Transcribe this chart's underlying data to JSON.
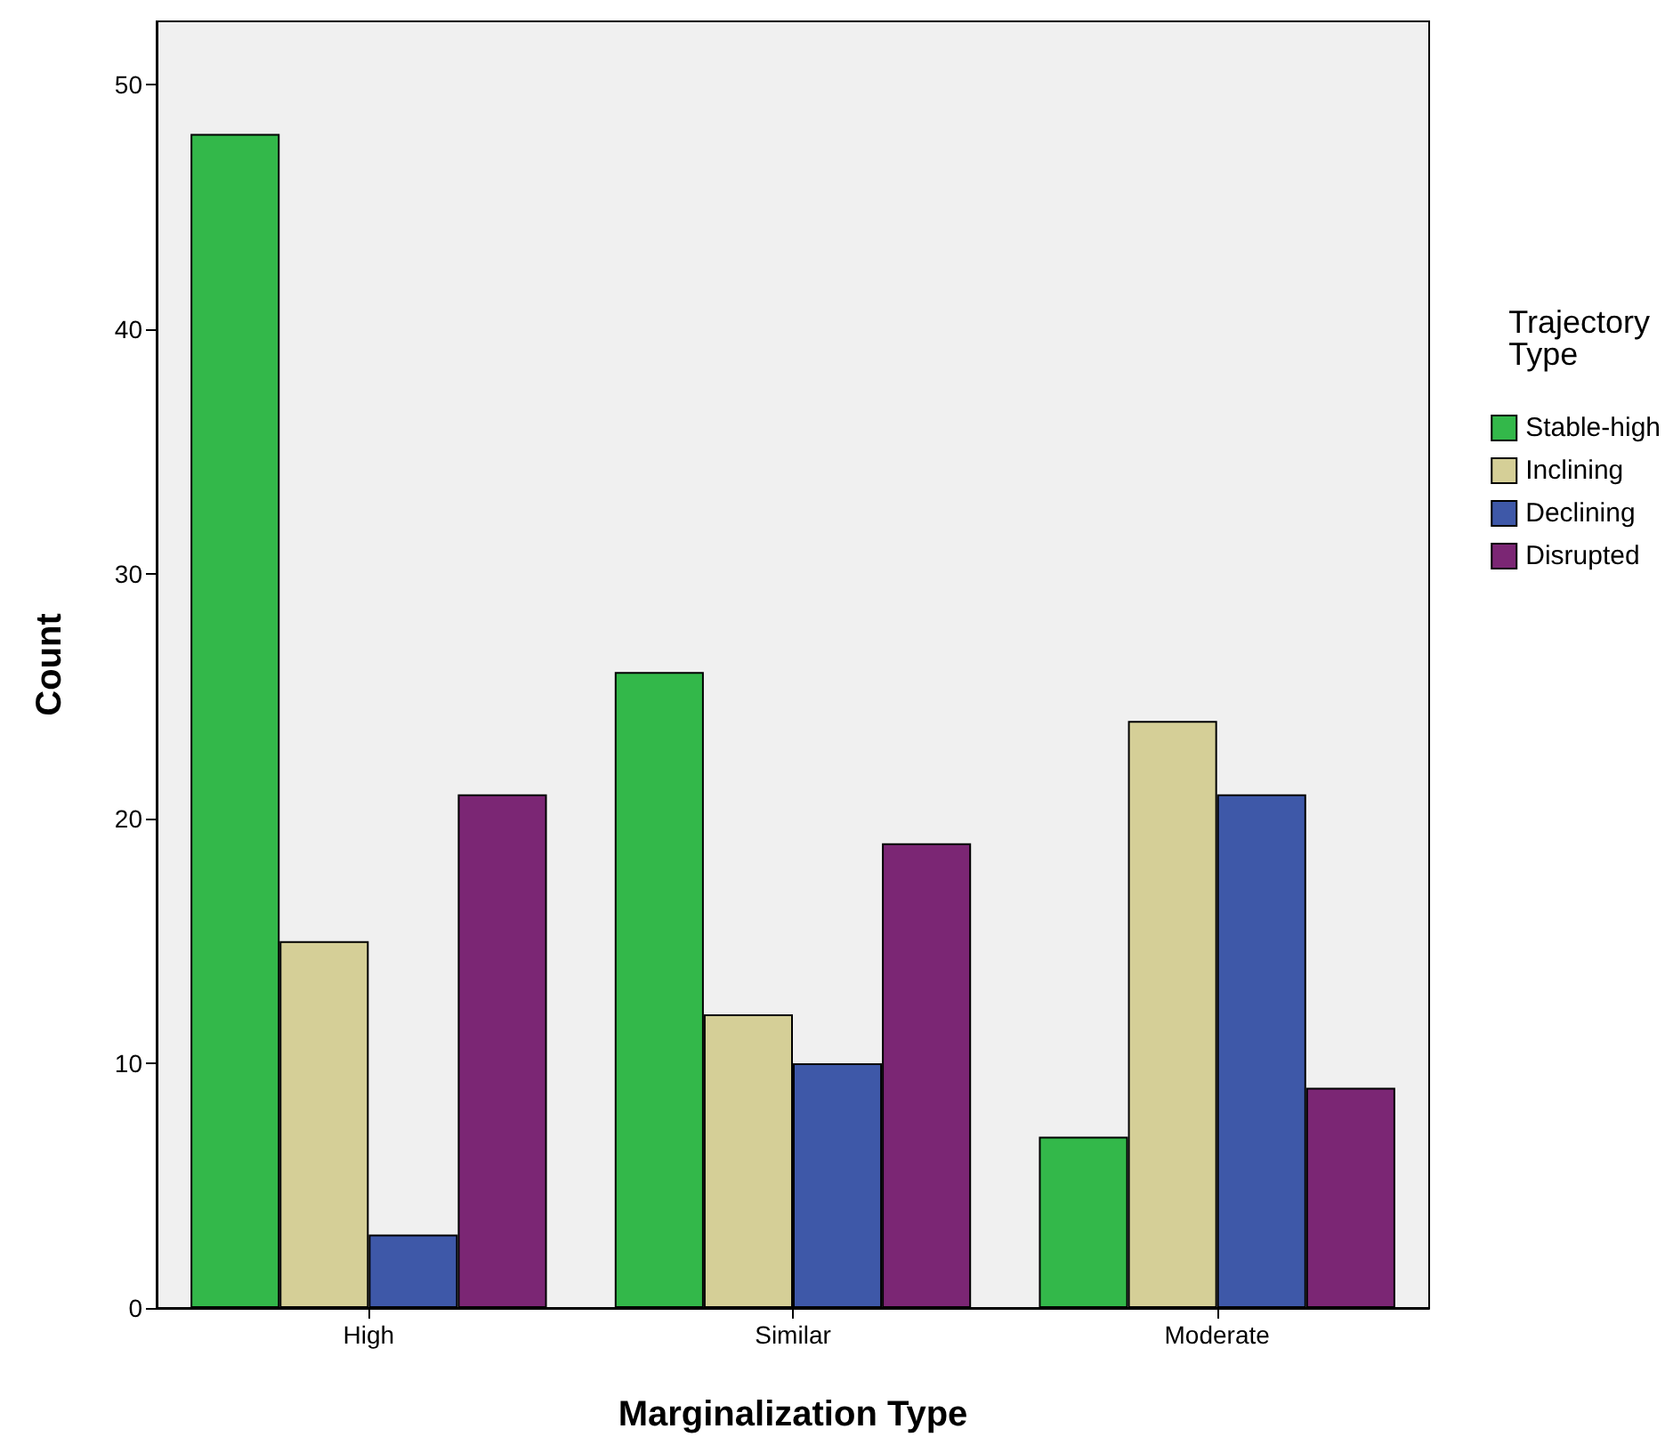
{
  "chart_data": {
    "type": "bar",
    "xlabel": "Marginalization Type",
    "ylabel": "Count",
    "legend_title": "Trajectory Type",
    "categories": [
      "High",
      "Similar",
      "Moderate"
    ],
    "series": [
      {
        "name": "Stable-high",
        "color": "#33b84a",
        "values": [
          48,
          26,
          7
        ]
      },
      {
        "name": "Inclining",
        "color": "#d5cf97",
        "values": [
          15,
          12,
          24
        ]
      },
      {
        "name": "Declining",
        "color": "#3e58a8",
        "values": [
          3,
          10,
          21
        ]
      },
      {
        "name": "Disrupted",
        "color": "#7b2674",
        "values": [
          21,
          19,
          9
        ]
      }
    ],
    "ylim": [
      0,
      52.6
    ],
    "yticks": [
      0,
      10,
      20,
      30,
      40,
      50
    ],
    "grid": false,
    "legend": "right"
  }
}
